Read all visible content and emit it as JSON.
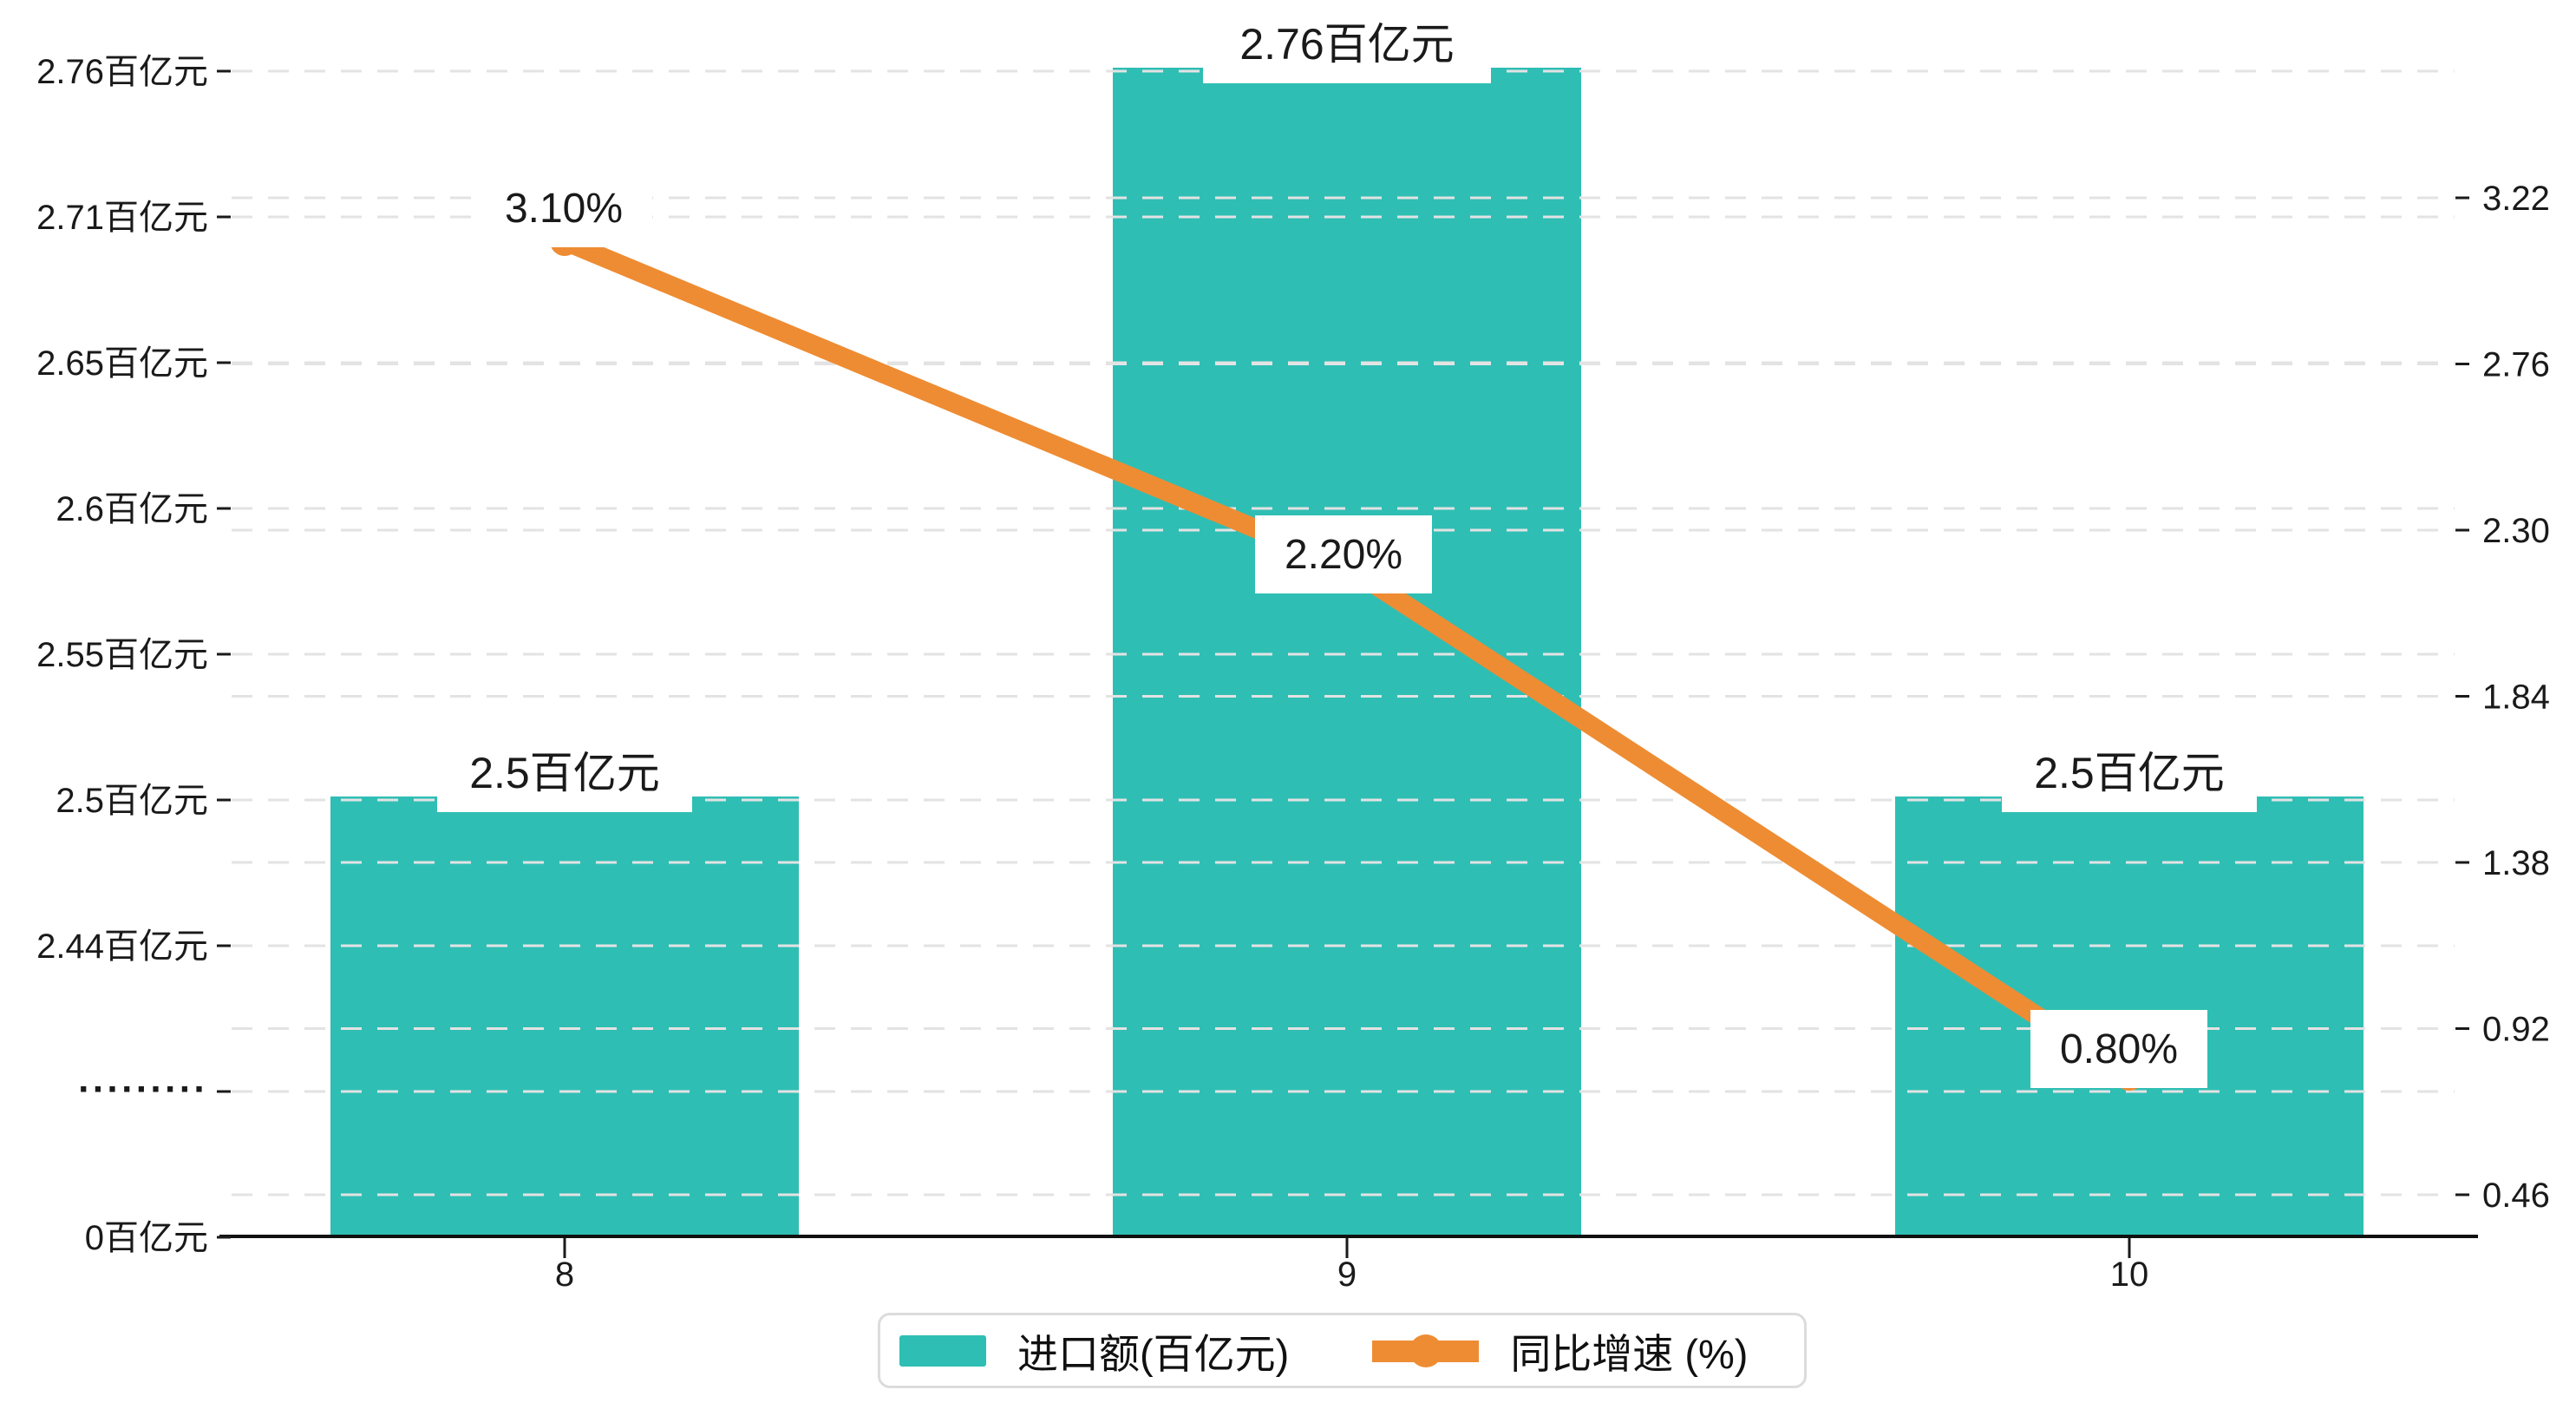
{
  "chart_data": {
    "type": "bar+line",
    "categories": [
      "8",
      "9",
      "10"
    ],
    "series": [
      {
        "name": "进口额(百亿元)",
        "type": "bar",
        "axis": "left",
        "color": "#2fbeb4",
        "values": [
          2.5,
          2.76,
          2.5
        ],
        "data_labels": [
          "2.5百亿元",
          "2.76百亿元",
          "2.5百亿元"
        ]
      },
      {
        "name": "同比增速 (%)",
        "type": "line",
        "axis": "right",
        "color": "#ee8c33",
        "values": [
          3.1,
          2.2,
          0.8
        ],
        "data_labels": [
          "3.10%",
          "2.20%",
          "0.80%"
        ]
      }
    ],
    "left_axis": {
      "tick_labels": [
        "0百亿元",
        "·········",
        "2.44百亿元",
        "2.5百亿元",
        "2.55百亿元",
        "2.6百亿元",
        "2.65百亿元",
        "2.71百亿元",
        "2.76百亿元"
      ],
      "note": "non-uniform (broken) value axis, evenly spaced ticks"
    },
    "right_axis": {
      "tick_labels": [
        "0.46",
        "0.92",
        "1.38",
        "1.84",
        "2.30",
        "2.76",
        "3.22"
      ],
      "min": 0.46,
      "max": 3.22
    },
    "title": "",
    "xlabel": "",
    "ylabel": "",
    "grid": "dashed horizontal gridlines for both axes",
    "legend_position": "bottom-center"
  },
  "legend": {
    "items": [
      {
        "label": "进口额(百亿元)",
        "marker": "bar-swatch"
      },
      {
        "label": "同比增速 (%)",
        "marker": "line-with-dot"
      }
    ]
  },
  "colors": {
    "bar": "#2fbeb4",
    "line": "#ee8c33",
    "axis_text": "#1a1a1a",
    "gridline": "#e3e3e3",
    "axis_line": "#111111",
    "label_bg": "#ffffff",
    "legend_border": "#dcdcdc"
  }
}
